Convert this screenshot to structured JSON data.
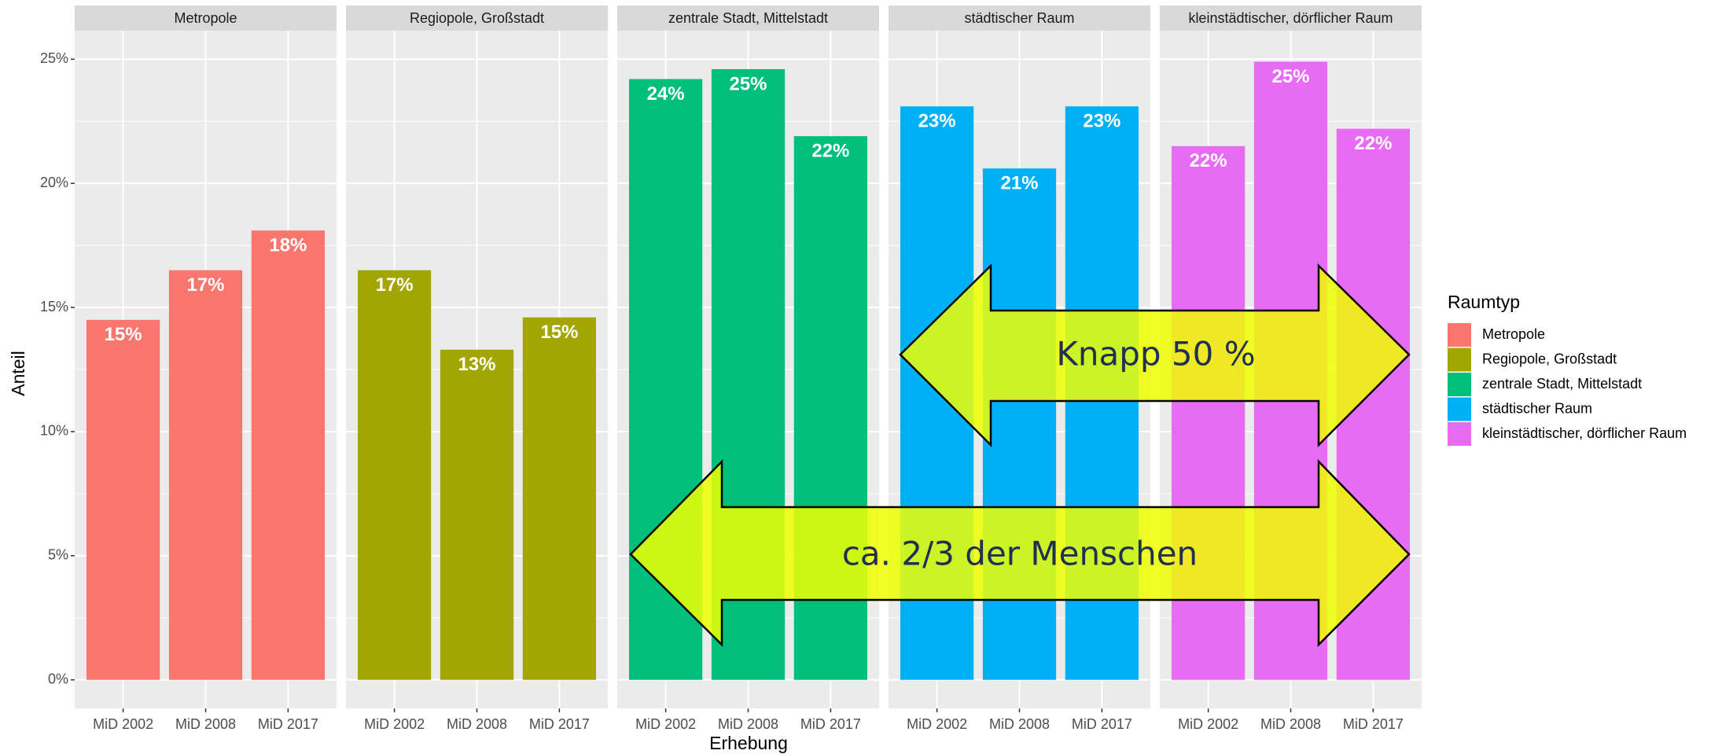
{
  "chart_data": {
    "type": "bar",
    "x_label": "Erhebung",
    "y_label": "Anteil",
    "legend_title": "Raumtyp",
    "categories": [
      "MiD 2002",
      "MiD 2008",
      "MiD 2017"
    ],
    "panels": [
      {
        "name": "Metropole",
        "color": "#F8766D",
        "values": [
          14.5,
          16.5,
          18.1
        ],
        "value_labels": [
          "15%",
          "17%",
          "18%"
        ]
      },
      {
        "name": "Regiopole, Großstadt",
        "color": "#A3A500",
        "values": [
          16.5,
          13.3,
          14.6
        ],
        "value_labels": [
          "17%",
          "13%",
          "15%"
        ]
      },
      {
        "name": "zentrale Stadt, Mittelstadt",
        "color": "#00BF7D",
        "values": [
          24.2,
          24.6,
          21.9
        ],
        "value_labels": [
          "24%",
          "25%",
          "22%"
        ]
      },
      {
        "name": "städtischer Raum",
        "color": "#00B0F6",
        "values": [
          23.1,
          20.6,
          23.1
        ],
        "value_labels": [
          "23%",
          "21%",
          "23%"
        ]
      },
      {
        "name": "kleinstädtischer, dörflicher Raum",
        "color": "#E76BF3",
        "values": [
          21.5,
          24.9,
          22.2
        ],
        "value_labels": [
          "22%",
          "25%",
          "22%"
        ]
      }
    ],
    "ylim": [
      -1.15,
      26.15
    ],
    "yticks": [
      {
        "value": 0,
        "label": "0%"
      },
      {
        "value": 5,
        "label": "5%"
      },
      {
        "value": 10,
        "label": "10%"
      },
      {
        "value": 15,
        "label": "15%"
      },
      {
        "value": 20,
        "label": "20%"
      },
      {
        "value": 25,
        "label": "25%"
      }
    ],
    "grid": true,
    "minor_grid": true,
    "legend": "right",
    "annotations": [
      "Knapp 50 %",
      "ca. 2/3 der Menschen"
    ]
  }
}
